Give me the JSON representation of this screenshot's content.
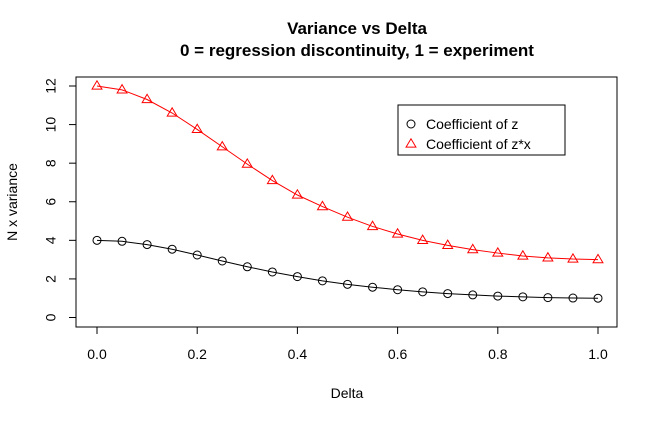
{
  "chart_data": {
    "type": "line",
    "title": "Variance vs Delta",
    "subtitle": "0 = regression discontinuity, 1 = experiment",
    "xlabel": "Delta",
    "ylabel": "N x variance",
    "xlim": [
      0,
      1
    ],
    "ylim": [
      0,
      12
    ],
    "x_ticks": [
      0.0,
      0.2,
      0.4,
      0.6,
      0.8,
      1.0
    ],
    "x_tick_labels": [
      "0.0",
      "0.2",
      "0.4",
      "0.6",
      "0.8",
      "1.0"
    ],
    "y_ticks": [
      0,
      2,
      4,
      6,
      8,
      10,
      12
    ],
    "y_tick_labels": [
      "0",
      "2",
      "4",
      "6",
      "8",
      "10",
      "12"
    ],
    "grid": false,
    "legend_position": "top-right",
    "x": [
      0.0,
      0.05,
      0.1,
      0.15,
      0.2,
      0.25,
      0.3,
      0.35,
      0.4,
      0.45,
      0.5,
      0.55,
      0.6,
      0.65,
      0.7,
      0.75,
      0.8,
      0.85,
      0.9,
      0.95,
      1.0
    ],
    "series": [
      {
        "name": "Coefficient of z",
        "color": "#000000",
        "marker": "circle",
        "values": [
          4.0,
          3.95,
          3.78,
          3.54,
          3.24,
          2.93,
          2.63,
          2.36,
          2.12,
          1.9,
          1.72,
          1.57,
          1.44,
          1.33,
          1.24,
          1.17,
          1.11,
          1.07,
          1.03,
          1.01,
          1.0
        ]
      },
      {
        "name": "Coefficient of z*x",
        "color": "#ff0000",
        "marker": "triangle",
        "values": [
          12.0,
          11.8,
          11.3,
          10.6,
          9.75,
          8.85,
          7.95,
          7.1,
          6.35,
          5.75,
          5.2,
          4.72,
          4.33,
          4.0,
          3.74,
          3.52,
          3.34,
          3.19,
          3.09,
          3.03,
          3.0
        ]
      }
    ]
  }
}
